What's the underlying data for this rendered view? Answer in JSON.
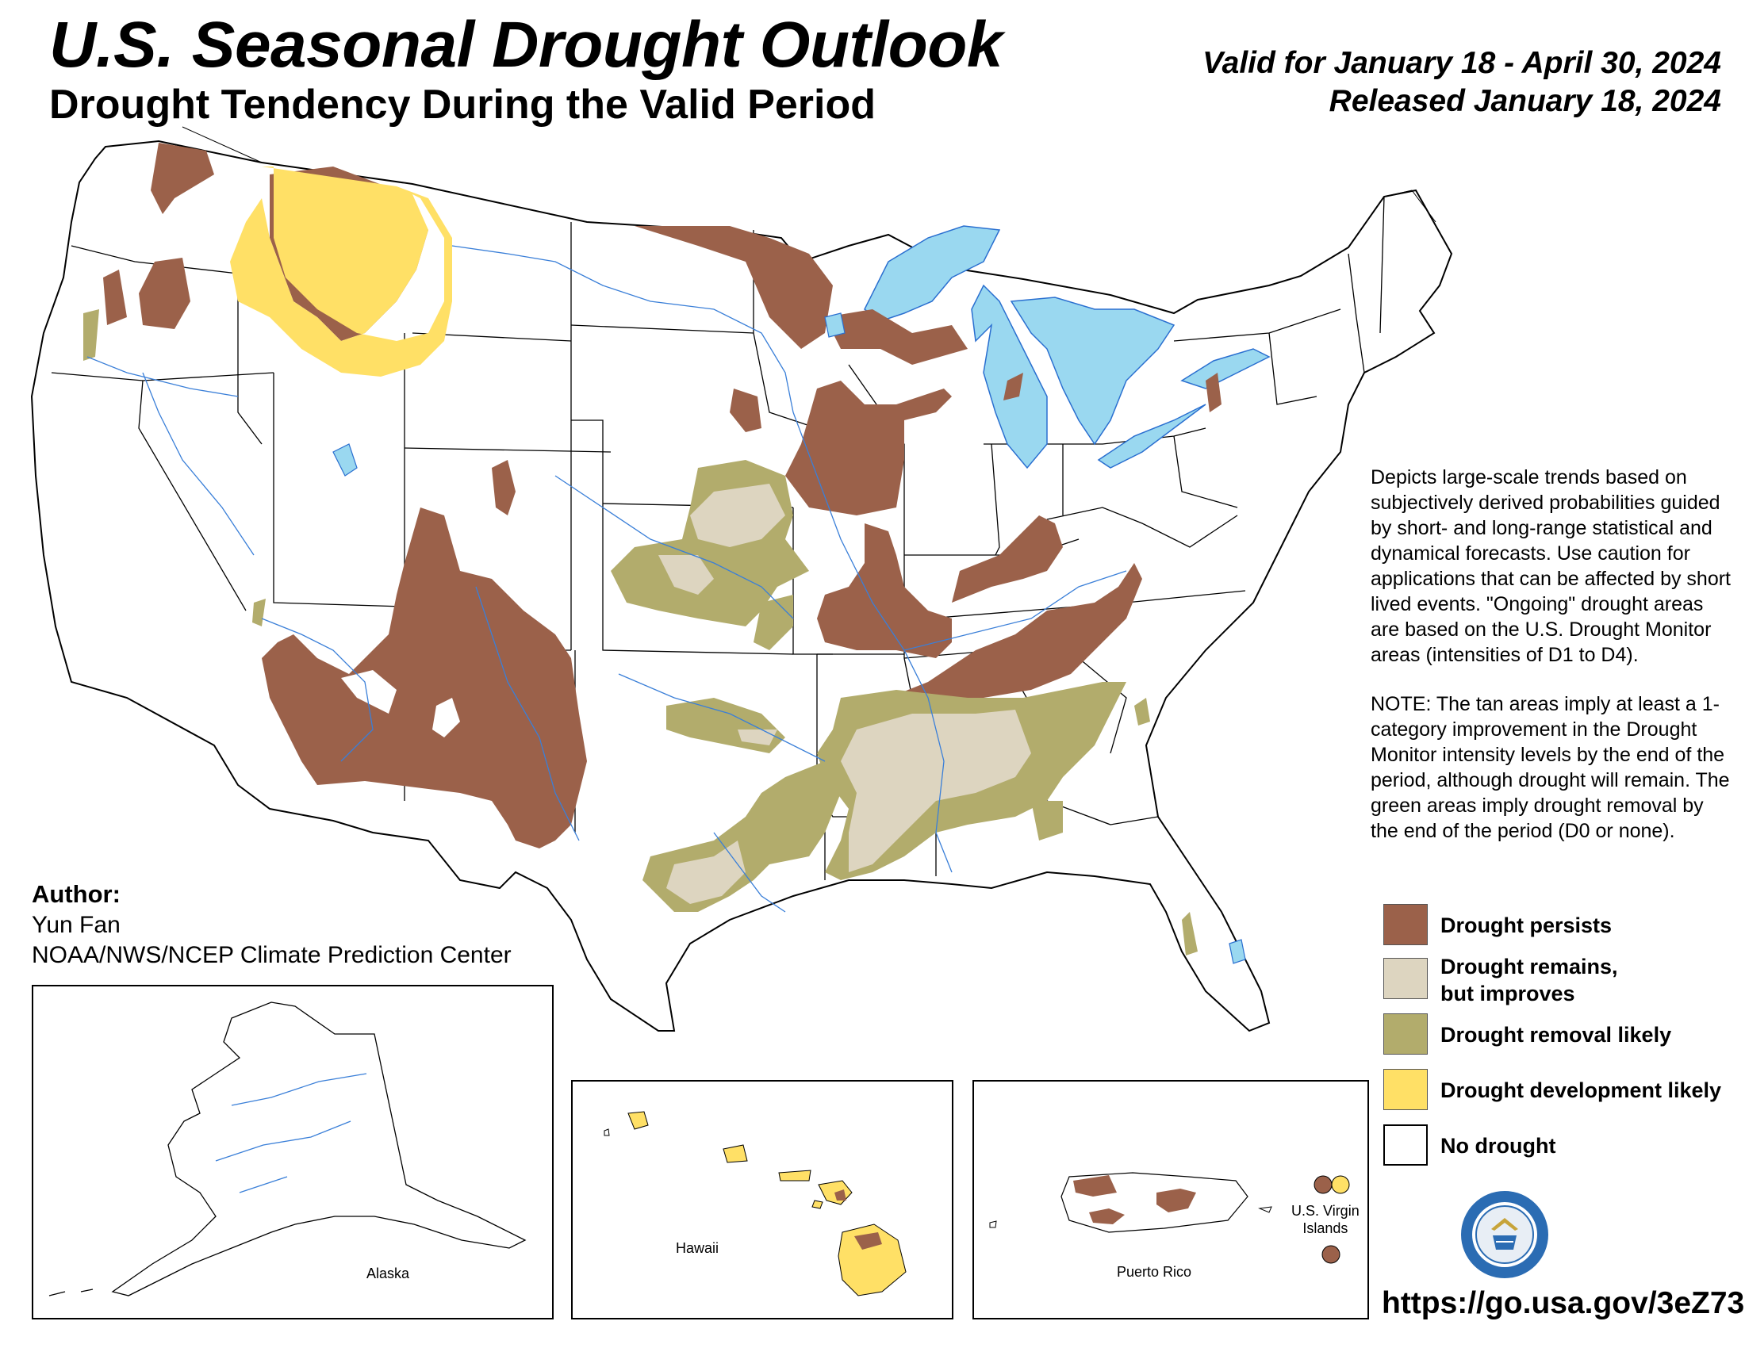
{
  "header": {
    "title": "U.S. Seasonal Drought Outlook",
    "subtitle": "Drought Tendency During the Valid Period",
    "valid": "Valid for January 18 - April 30, 2024",
    "released": "Released January 18, 2024"
  },
  "description": {
    "para1": "Depicts large-scale trends based on subjectively derived probabilities guided by short- and long-range statistical and dynamical forecasts. Use caution for applications that can be affected by short lived events. \"Ongoing\" drought areas are based on the U.S. Drought Monitor areas (intensities of D1 to D4).",
    "para2": "NOTE: The tan areas imply at least a 1-category improvement in the Drought Monitor intensity levels by the end of the period, although drought will remain. The green areas imply drought removal by the end of the period (D0 or none)."
  },
  "legend": {
    "items": [
      {
        "label": "Drought persists",
        "color": "#9b614a"
      },
      {
        "label": "Drought remains,\nbut improves",
        "color": "#ddd5c0"
      },
      {
        "label": "Drought removal likely",
        "color": "#b2ac6c"
      },
      {
        "label": "Drought development likely",
        "color": "#ffe066"
      },
      {
        "label": "No drought",
        "color": "#ffffff"
      }
    ]
  },
  "author": {
    "heading": "Author:",
    "name": "Yun Fan",
    "org": "NOAA/NWS/NCEP Climate Prediction Center"
  },
  "insets": {
    "alaska": "Alaska",
    "hawaii": "Hawaii",
    "puerto_rico": "Puerto Rico",
    "virgin_islands": "U.S. Virgin\nIslands"
  },
  "footer": {
    "url": "https://go.usa.gov/3eZ73"
  },
  "colors": {
    "persist": "#9b614a",
    "improve": "#ddd5c0",
    "removal": "#b2ac6c",
    "development": "#ffe066",
    "water": "#9ad8f0",
    "river": "#3a7fd8"
  }
}
